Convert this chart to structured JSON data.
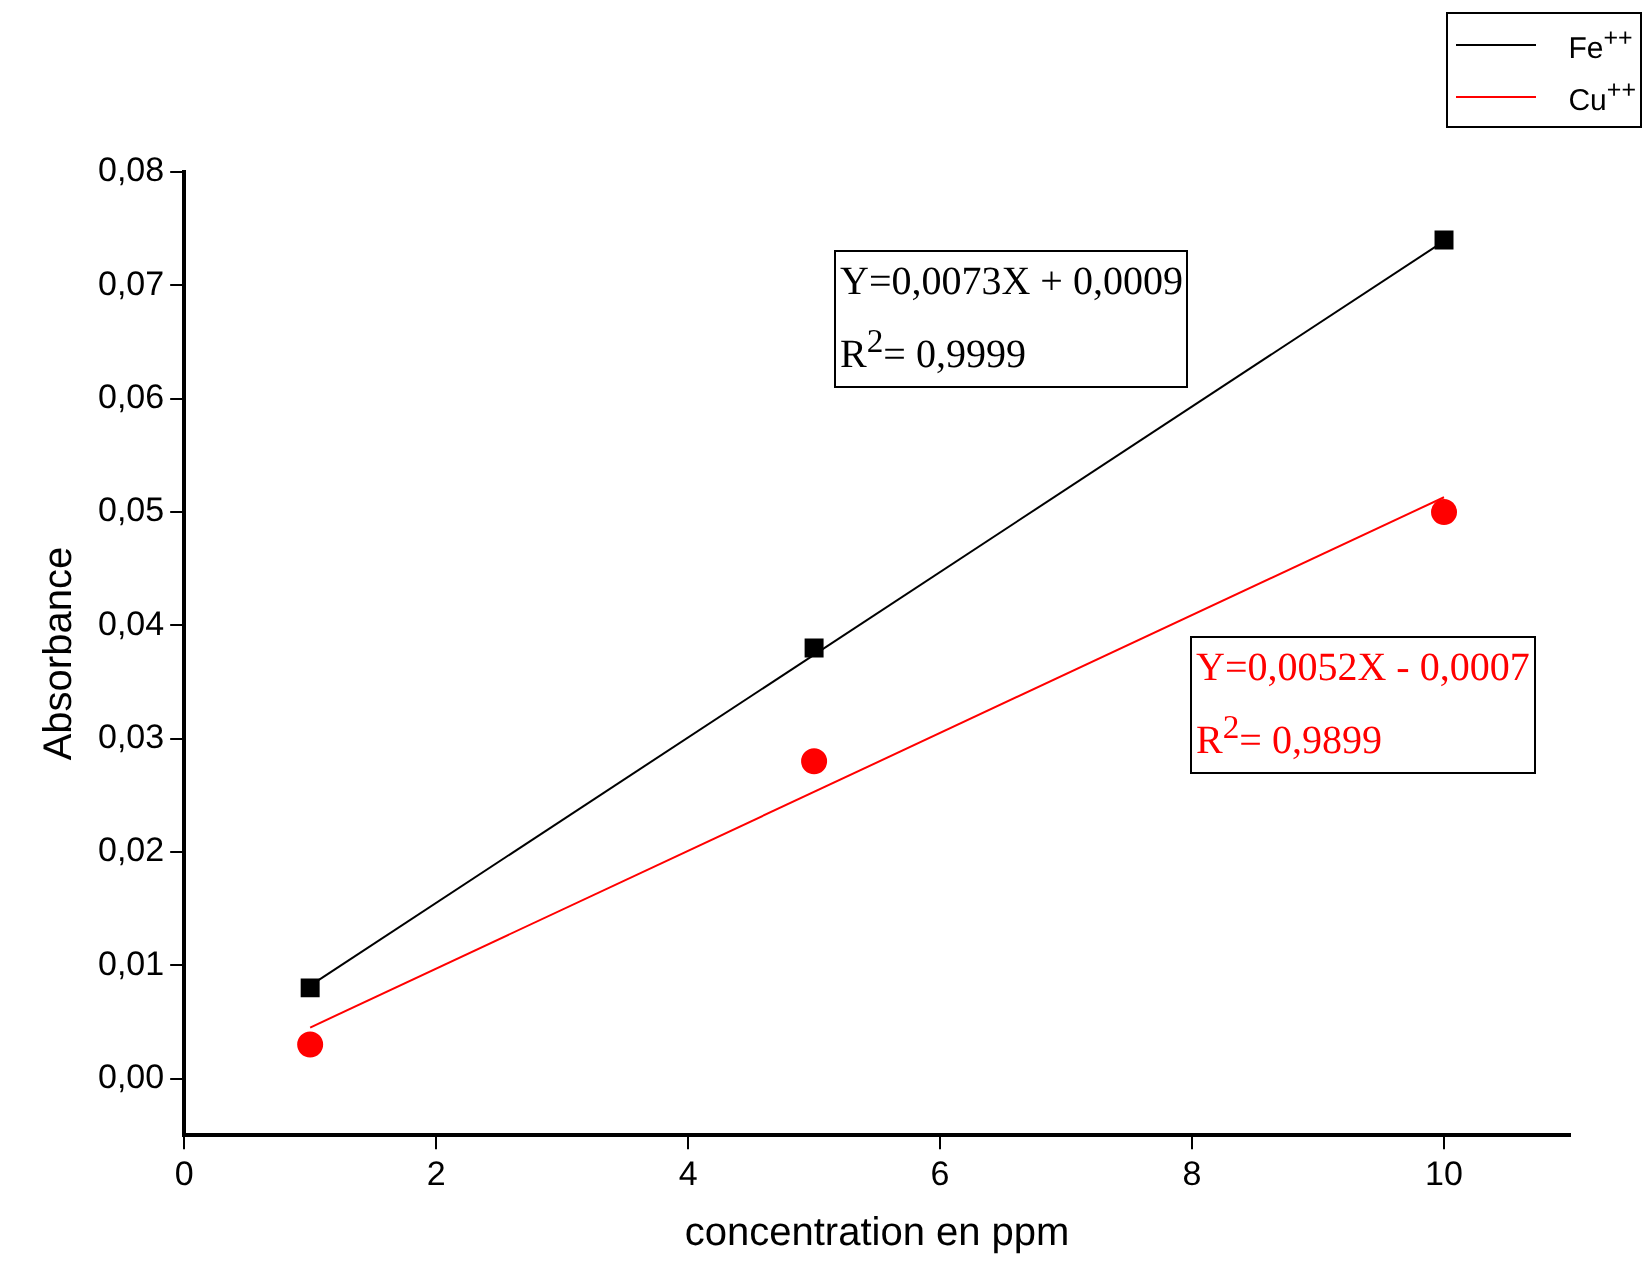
{
  "chart_data": {
    "type": "scatter",
    "xlabel": "concentration en ppm",
    "ylabel": "Absorbance",
    "xlim": [
      0,
      11
    ],
    "xticks": [
      0,
      2,
      4,
      6,
      8,
      10
    ],
    "ylim": [
      -0.005,
      0.08
    ],
    "yticks": [
      {
        "value": 0,
        "label": "0,00"
      },
      {
        "value": 0.01,
        "label": "0,01"
      },
      {
        "value": 0.02,
        "label": "0,02"
      },
      {
        "value": 0.03,
        "label": "0,03"
      },
      {
        "value": 0.04,
        "label": "0,04"
      },
      {
        "value": 0.05,
        "label": "0,05"
      },
      {
        "value": 0.06,
        "label": "0,06"
      },
      {
        "value": 0.07,
        "label": "0,07"
      },
      {
        "value": 0.08,
        "label": "0,08"
      }
    ],
    "grid": false,
    "legend": "top right",
    "series": [
      {
        "name": "Fe$^{++}$",
        "type": "line",
        "color": "#000000",
        "x": [
          1,
          10
        ],
        "values": [
          0.0082,
          0.0739
        ],
        "marker": "none"
      },
      {
        "name": "Cu$^{++}$",
        "type": "line",
        "color": "#ff0000",
        "x": [
          1,
          10
        ],
        "values": [
          0.0045,
          0.0513
        ],
        "marker": "none"
      },
      {
        "color": "#000000",
        "x": [
          1,
          5,
          10
        ],
        "values": [
          0.008,
          0.038,
          0.074
        ],
        "marker": "square"
      },
      {
        "color": "#ff0000",
        "x": [
          1,
          5,
          10
        ],
        "values": [
          0.003,
          0.028,
          0.05
        ],
        "marker": "circle"
      }
    ],
    "annotations": [
      "Y=0,0073X + 0,0009\nR$^{2}$= 0,9999",
      "Y=0,0052X - 0,0007\nR$^{2}$= 0,9899"
    ]
  }
}
